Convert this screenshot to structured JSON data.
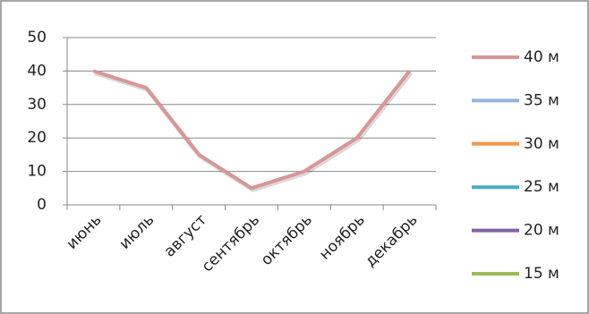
{
  "chart_data": {
    "type": "line",
    "categories": [
      "июнь",
      "июль",
      "август",
      "сентябрь",
      "октябрь",
      "ноябрь",
      "декабрь"
    ],
    "series": [
      {
        "name": "40 м",
        "color": "#d99694",
        "values": [
          40,
          35,
          15,
          5,
          10,
          20,
          40
        ]
      },
      {
        "name": "35 м",
        "color": "#95b3d7",
        "values": [
          null,
          null,
          null,
          null,
          null,
          null,
          null
        ]
      },
      {
        "name": "30 м",
        "color": "#f79646",
        "values": [
          null,
          null,
          null,
          null,
          null,
          null,
          null
        ]
      },
      {
        "name": "25 м",
        "color": "#4bacc6",
        "values": [
          null,
          null,
          null,
          null,
          null,
          null,
          null
        ]
      },
      {
        "name": "20 м",
        "color": "#8064a2",
        "values": [
          null,
          null,
          null,
          null,
          null,
          null,
          null
        ]
      },
      {
        "name": "15 м",
        "color": "#9bbb59",
        "values": [
          null,
          null,
          null,
          null,
          null,
          null,
          null
        ]
      }
    ],
    "ylim": [
      0,
      50
    ],
    "yticks": [
      0,
      10,
      20,
      30,
      40,
      50
    ],
    "grid": true,
    "legend": "right"
  }
}
